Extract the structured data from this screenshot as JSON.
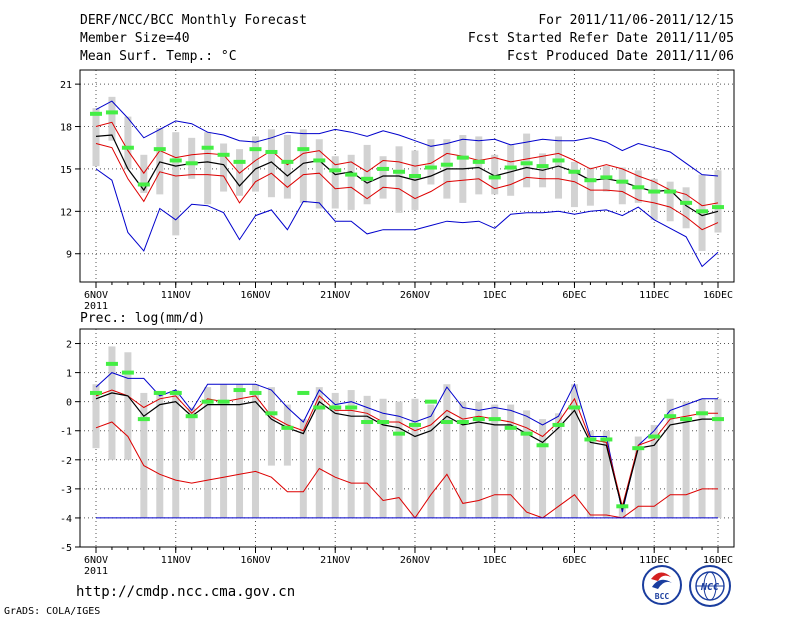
{
  "header": {
    "title": "DERF/NCC/BCC Monthly Forecast",
    "member_size": "Member Size=40",
    "variable": "Mean Surf. Temp.: °C",
    "forecast_period": "For 2011/11/06-2011/12/15",
    "start_ref_date": "Fcst Started Refer Date 2011/11/05",
    "produced_date": "Fcst Produced Date 2011/11/06"
  },
  "footer": {
    "url": "http://cmdp.ncc.cma.gov.cn",
    "grads": "GrADS: COLA/IGES",
    "logo_bcc": "BCC",
    "logo_ncc": "NCC"
  },
  "colors": {
    "envelope": "#0000cc",
    "spread": "#dd0000",
    "mean": "#000000",
    "member_box": "#d2d2d2",
    "observed_mark": "#44ee44",
    "grid": "#555555"
  },
  "chart_data": [
    {
      "type": "line",
      "name": "temperature",
      "ylabel": "Mean Surf. Temp.: °C",
      "ylim": [
        7,
        22
      ],
      "yticks": [
        9,
        12,
        15,
        18,
        21
      ],
      "xlim": [
        0,
        39
      ],
      "xticks": [
        {
          "x": 0,
          "label": "6NOV"
        },
        {
          "x": 5,
          "label": "11NOV"
        },
        {
          "x": 10,
          "label": "16NOV"
        },
        {
          "x": 15,
          "label": "21NOV"
        },
        {
          "x": 20,
          "label": "26NOV"
        },
        {
          "x": 25,
          "label": "1DEC"
        },
        {
          "x": 30,
          "label": "6DEC"
        },
        {
          "x": 35,
          "label": "11DEC"
        },
        {
          "x": 39,
          "label": "16DEC"
        }
      ],
      "year_label": "2011",
      "grid": true,
      "series": [
        {
          "name": "max",
          "role": "envelope",
          "values": [
            19.2,
            19.8,
            18.6,
            17.2,
            17.8,
            18.4,
            18.2,
            17.6,
            17.4,
            17.0,
            16.9,
            17.2,
            17.6,
            17.5,
            17.5,
            17.8,
            17.6,
            17.3,
            17.7,
            17.4,
            17.0,
            16.6,
            16.8,
            17.1,
            17.0,
            17.1,
            16.7,
            16.9,
            17.1,
            17.0,
            17.0,
            17.2,
            16.9,
            16.3,
            16.8,
            16.5,
            16.2,
            15.4,
            14.6,
            14.5
          ]
        },
        {
          "name": "min",
          "role": "envelope",
          "values": [
            15.0,
            14.2,
            10.5,
            9.2,
            12.2,
            11.4,
            12.5,
            12.4,
            11.9,
            10.0,
            11.7,
            12.1,
            10.7,
            12.7,
            12.6,
            11.3,
            11.3,
            10.4,
            10.7,
            10.7,
            10.7,
            11.0,
            11.3,
            11.2,
            11.3,
            10.8,
            11.8,
            11.9,
            11.9,
            12.0,
            11.8,
            12.0,
            12.1,
            11.7,
            12.3,
            11.4,
            10.8,
            10.2,
            8.1,
            9.1
          ]
        },
        {
          "name": "upper",
          "role": "spread",
          "values": [
            18.0,
            18.3,
            16.3,
            14.7,
            16.3,
            15.8,
            16.0,
            16.1,
            16.0,
            14.7,
            15.6,
            16.3,
            15.3,
            16.1,
            16.3,
            15.3,
            15.5,
            14.8,
            15.6,
            15.5,
            15.2,
            15.4,
            16.1,
            15.9,
            15.6,
            15.8,
            15.5,
            15.7,
            15.9,
            16.1,
            15.6,
            15.0,
            15.3,
            15.0,
            14.5,
            14.1,
            13.5,
            13.2,
            12.4,
            12.6
          ]
        },
        {
          "name": "mean",
          "role": "mean",
          "values": [
            17.3,
            17.4,
            15.0,
            13.5,
            15.5,
            15.2,
            15.4,
            15.5,
            15.3,
            13.8,
            15.0,
            15.5,
            14.5,
            15.4,
            15.6,
            14.6,
            14.8,
            14.0,
            14.5,
            14.5,
            14.2,
            14.5,
            15.0,
            15.0,
            15.1,
            14.5,
            14.8,
            15.1,
            14.9,
            15.2,
            14.8,
            14.2,
            14.3,
            14.1,
            13.7,
            13.4,
            13.5,
            12.4,
            11.7,
            12.0
          ]
        },
        {
          "name": "lower",
          "role": "spread",
          "values": [
            16.8,
            16.5,
            14.3,
            12.7,
            14.8,
            14.5,
            14.6,
            14.6,
            14.5,
            12.6,
            14.1,
            14.7,
            13.7,
            14.6,
            14.7,
            13.6,
            13.7,
            12.9,
            13.7,
            13.6,
            12.9,
            13.4,
            14.1,
            14.2,
            14.3,
            13.6,
            13.9,
            14.4,
            14.3,
            14.3,
            14.1,
            13.5,
            13.5,
            13.4,
            12.8,
            12.6,
            12.3,
            11.6,
            10.7,
            11.2
          ]
        }
      ],
      "boxes": {
        "lo": [
          15.2,
          17.0,
          15.0,
          13.3,
          13.2,
          10.3,
          14.3,
          12.5,
          13.4,
          13.1,
          13.4,
          13.0,
          12.9,
          12.6,
          12.2,
          12.2,
          12.1,
          12.5,
          12.9,
          11.9,
          12.1,
          13.9,
          12.9,
          12.6,
          13.2,
          13.2,
          13.1,
          13.7,
          13.7,
          12.9,
          12.3,
          12.4,
          13.4,
          12.5,
          12.6,
          11.4,
          11.3,
          10.8,
          9.2,
          10.5
        ],
        "hi": [
          19.3,
          20.1,
          18.7,
          16.0,
          17.9,
          17.6,
          17.2,
          17.6,
          16.8,
          16.4,
          17.3,
          17.8,
          17.4,
          17.8,
          17.1,
          15.9,
          16.0,
          16.7,
          15.9,
          16.6,
          16.3,
          17.1,
          17.1,
          17.4,
          17.3,
          16.0,
          16.7,
          17.5,
          16.1,
          17.3,
          15.5,
          15.1,
          15.2,
          15.1,
          14.9,
          14.3,
          14.1,
          13.7,
          14.6,
          14.9
        ]
      },
      "observed_marks": [
        18.9,
        19.0,
        16.5,
        13.9,
        16.4,
        15.6,
        15.4,
        16.5,
        16.0,
        15.5,
        16.4,
        16.2,
        15.5,
        16.4,
        15.6,
        14.9,
        14.6,
        14.3,
        15.0,
        14.8,
        14.5,
        15.1,
        15.3,
        15.8,
        15.5,
        14.4,
        15.1,
        15.4,
        15.2,
        15.6,
        14.8,
        14.2,
        14.4,
        14.1,
        13.7,
        13.4,
        13.4,
        12.6,
        12.0,
        12.3
      ]
    },
    {
      "type": "line",
      "name": "precipitation",
      "ylabel": "Prec.: log(mm/d)",
      "ylim": [
        -5,
        2.5
      ],
      "yticks": [
        -5,
        -4,
        -3,
        -2,
        -1,
        0,
        1,
        2
      ],
      "xlim": [
        0,
        39
      ],
      "xticks": [
        {
          "x": 0,
          "label": "6NOV"
        },
        {
          "x": 5,
          "label": "11NOV"
        },
        {
          "x": 10,
          "label": "16NOV"
        },
        {
          "x": 15,
          "label": "21NOV"
        },
        {
          "x": 20,
          "label": "26NOV"
        },
        {
          "x": 25,
          "label": "1DEC"
        },
        {
          "x": 30,
          "label": "6DEC"
        },
        {
          "x": 35,
          "label": "11DEC"
        },
        {
          "x": 39,
          "label": "16DEC"
        }
      ],
      "year_label": "2011",
      "grid": true,
      "series": [
        {
          "name": "max",
          "role": "envelope",
          "values": [
            0.5,
            1.0,
            0.8,
            0.8,
            0.2,
            0.4,
            -0.3,
            0.6,
            0.6,
            0.6,
            0.6,
            0.4,
            -0.2,
            -0.7,
            0.4,
            -0.1,
            0.0,
            -0.2,
            -0.4,
            -0.5,
            -0.7,
            -0.5,
            0.5,
            -0.2,
            -0.3,
            -0.2,
            -0.3,
            -0.5,
            -0.8,
            -0.5,
            0.6,
            -1.2,
            -1.2,
            -3.8,
            -1.5,
            -1.0,
            -0.3,
            -0.1,
            0.1,
            0.1
          ]
        },
        {
          "name": "upper",
          "role": "spread",
          "values": [
            0.2,
            0.4,
            0.2,
            -0.2,
            0.1,
            0.2,
            -0.4,
            0.1,
            0.0,
            0.1,
            0.2,
            -0.5,
            -0.8,
            -1.0,
            0.2,
            -0.3,
            -0.3,
            -0.4,
            -0.7,
            -0.7,
            -1.0,
            -0.8,
            -0.3,
            -0.6,
            -0.5,
            -0.6,
            -0.7,
            -0.9,
            -1.2,
            -0.7,
            0.1,
            -1.3,
            -1.4,
            -3.6,
            -1.5,
            -1.3,
            -0.6,
            -0.5,
            -0.4,
            -0.4
          ]
        },
        {
          "name": "mean",
          "role": "mean",
          "values": [
            0.1,
            0.3,
            0.2,
            -0.5,
            -0.1,
            0.0,
            -0.5,
            -0.1,
            -0.1,
            -0.1,
            0.0,
            -0.6,
            -0.9,
            -1.1,
            0.0,
            -0.4,
            -0.5,
            -0.5,
            -0.8,
            -0.9,
            -1.2,
            -1.0,
            -0.5,
            -0.8,
            -0.7,
            -0.8,
            -0.8,
            -1.1,
            -1.4,
            -0.9,
            -0.3,
            -1.4,
            -1.5,
            -3.7,
            -1.6,
            -1.5,
            -0.8,
            -0.7,
            -0.6,
            -0.6
          ]
        },
        {
          "name": "lower",
          "role": "spread",
          "values": [
            -0.9,
            -0.7,
            -1.2,
            -2.2,
            -2.5,
            -2.7,
            -2.8,
            -2.7,
            -2.6,
            -2.5,
            -2.4,
            -2.6,
            -3.1,
            -3.1,
            -2.3,
            -2.6,
            -2.8,
            -2.8,
            -3.4,
            -3.3,
            -4.0,
            -3.2,
            -2.5,
            -3.5,
            -3.4,
            -3.2,
            -3.2,
            -3.8,
            -4.0,
            -3.6,
            -3.2,
            -3.9,
            -3.9,
            -4.0,
            -3.6,
            -3.6,
            -3.2,
            -3.2,
            -3.0,
            -3.0
          ]
        },
        {
          "name": "min",
          "role": "envelope",
          "values": [
            -4.0,
            -4.0,
            -4.0,
            -4.0,
            -4.0,
            -4.0,
            -4.0,
            -4.0,
            -4.0,
            -4.0,
            -4.0,
            -4.0,
            -4.0,
            -4.0,
            -4.0,
            -4.0,
            -4.0,
            -4.0,
            -4.0,
            -4.0,
            -4.0,
            -4.0,
            -4.0,
            -4.0,
            -4.0,
            -4.0,
            -4.0,
            -4.0,
            -4.0,
            -4.0,
            -4.0,
            -4.0,
            -4.0,
            -4.0,
            -4.0,
            -4.0,
            -4.0,
            -4.0,
            -4.0,
            -4.0
          ]
        }
      ],
      "boxes": {
        "lo": [
          -1.6,
          -2.0,
          -2.0,
          -4.0,
          -4.0,
          -4.0,
          -2.0,
          -4.0,
          -4.0,
          -4.0,
          -4.0,
          -2.2,
          -2.2,
          -4.0,
          -4.0,
          -4.0,
          -4.0,
          -4.0,
          -4.0,
          -4.0,
          -4.0,
          -4.0,
          -4.0,
          -4.0,
          -4.0,
          -4.0,
          -4.0,
          -4.0,
          -4.0,
          -4.0,
          -4.0,
          -4.0,
          -4.0,
          -4.0,
          -4.0,
          -4.0,
          -4.0,
          -4.0,
          -4.0,
          -4.0
        ],
        "hi": [
          0.6,
          1.9,
          1.7,
          0.3,
          0.3,
          0.4,
          -0.2,
          0.5,
          0.6,
          0.6,
          0.6,
          0.5,
          -0.1,
          -0.6,
          0.5,
          0.3,
          0.4,
          0.2,
          0.1,
          0.0,
          0.1,
          -0.1,
          0.6,
          0.0,
          0.0,
          -0.1,
          -0.1,
          -0.3,
          -0.6,
          -0.4,
          0.6,
          -1.0,
          -1.0,
          -3.6,
          -1.2,
          -0.8,
          0.1,
          0.0,
          0.1,
          0.1
        ]
      },
      "observed_marks": [
        0.3,
        1.3,
        1.0,
        -0.6,
        0.3,
        0.3,
        -0.5,
        0.0,
        0.0,
        0.4,
        0.3,
        -0.4,
        -0.9,
        0.3,
        -0.2,
        -0.2,
        -0.2,
        -0.7,
        -0.7,
        -1.1,
        -0.8,
        0.0,
        -0.7,
        -0.7,
        -0.6,
        -0.6,
        -0.9,
        -1.1,
        -1.5,
        -0.8,
        -0.2,
        -1.3,
        -1.3,
        -3.6,
        -1.6,
        -1.2,
        -0.5,
        -0.6,
        -0.4,
        -0.6
      ]
    }
  ]
}
